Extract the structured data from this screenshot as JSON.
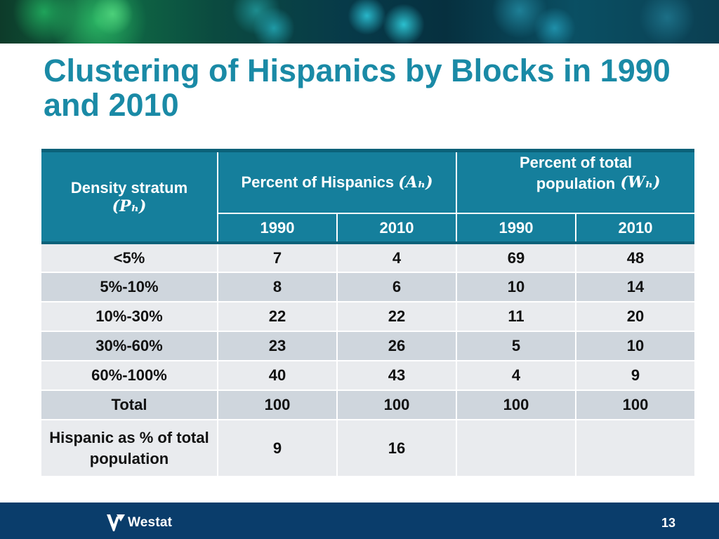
{
  "slide": {
    "title": "Clustering of Hispanics by Blocks in 1990 and 2010",
    "page_number": "13"
  },
  "brand": {
    "logo_text": "Westat"
  },
  "table": {
    "header": {
      "stratum_label": "Density stratum",
      "stratum_symbol": "(Pₕ)",
      "hispanics_label": "Percent of Hispanics",
      "hispanics_symbol": "(Aₕ)",
      "total_label": "Percent of total population",
      "total_symbol": "(Wₕ)",
      "years": [
        "1990",
        "2010",
        "1990",
        "2010"
      ]
    },
    "rows": [
      {
        "label": "<5%",
        "values": [
          "7",
          "4",
          "69",
          "48"
        ]
      },
      {
        "label": "5%-10%",
        "values": [
          "8",
          "6",
          "10",
          "14"
        ]
      },
      {
        "label": "10%-30%",
        "values": [
          "22",
          "22",
          "11",
          "20"
        ]
      },
      {
        "label": "30%-60%",
        "values": [
          "23",
          "26",
          "5",
          "10"
        ]
      },
      {
        "label": "60%-100%",
        "values": [
          "40",
          "43",
          "4",
          "9"
        ]
      },
      {
        "label": "Total",
        "values": [
          "100",
          "100",
          "100",
          "100"
        ]
      },
      {
        "label": "Hispanic as % of total population",
        "values": [
          "9",
          "16",
          "",
          ""
        ]
      }
    ]
  }
}
